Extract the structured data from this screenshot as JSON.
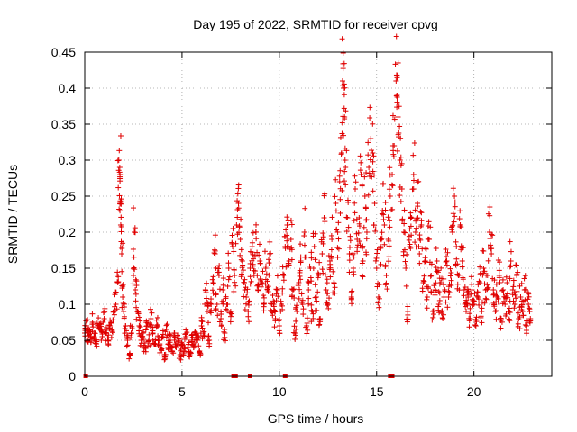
{
  "chart_data": {
    "type": "scatter",
    "title": "Day 195 of 2022, SRMTID for receiver cpvg",
    "xlabel": "GPS time / hours",
    "ylabel": "SRMTID / TECUs",
    "xlim": [
      0,
      24
    ],
    "ylim": [
      0,
      0.45
    ],
    "xticks": [
      0,
      5,
      10,
      15,
      20
    ],
    "xtick_labels": [
      "0",
      "5",
      "10",
      "15",
      "20"
    ],
    "yticks": [
      0,
      0.05,
      0.1,
      0.15,
      0.2,
      0.25,
      0.3,
      0.35,
      0.4,
      0.45
    ],
    "ytick_labels": [
      "0",
      "0.05",
      "0.1",
      "0.15",
      "0.2",
      "0.25",
      "0.3",
      "0.35",
      "0.4",
      "0.45"
    ],
    "grid": true,
    "marker": "+",
    "color": "#e00000",
    "series": [
      {
        "name": "SRMTID",
        "points": [
          [
            0.0,
            0.06
          ],
          [
            0.1,
            0.07
          ],
          [
            0.15,
            0.05
          ],
          [
            0.2,
            0.065
          ],
          [
            0.3,
            0.055
          ],
          [
            0.4,
            0.075
          ],
          [
            0.5,
            0.06
          ],
          [
            0.6,
            0.045
          ],
          [
            0.7,
            0.07
          ],
          [
            0.8,
            0.065
          ],
          [
            0.9,
            0.055
          ],
          [
            1.0,
            0.08
          ],
          [
            1.1,
            0.06
          ],
          [
            1.2,
            0.05
          ],
          [
            1.3,
            0.07
          ],
          [
            1.4,
            0.065
          ],
          [
            1.5,
            0.09
          ],
          [
            1.6,
            0.1
          ],
          [
            1.7,
            0.13
          ],
          [
            1.75,
            0.3
          ],
          [
            1.8,
            0.29
          ],
          [
            1.82,
            0.24
          ],
          [
            1.85,
            0.21
          ],
          [
            1.9,
            0.17
          ],
          [
            1.95,
            0.11
          ],
          [
            2.0,
            0.09
          ],
          [
            2.1,
            0.07
          ],
          [
            2.2,
            0.05
          ],
          [
            2.3,
            0.03
          ],
          [
            2.4,
            0.06
          ],
          [
            2.5,
            0.14
          ],
          [
            2.55,
            0.2
          ],
          [
            2.6,
            0.12
          ],
          [
            2.7,
            0.09
          ],
          [
            2.8,
            0.07
          ],
          [
            2.9,
            0.05
          ],
          [
            3.0,
            0.06
          ],
          [
            3.1,
            0.04
          ],
          [
            3.2,
            0.07
          ],
          [
            3.3,
            0.05
          ],
          [
            3.4,
            0.08
          ],
          [
            3.5,
            0.06
          ],
          [
            3.6,
            0.045
          ],
          [
            3.7,
            0.07
          ],
          [
            3.8,
            0.05
          ],
          [
            3.9,
            0.04
          ],
          [
            4.0,
            0.055
          ],
          [
            4.1,
            0.03
          ],
          [
            4.2,
            0.065
          ],
          [
            4.3,
            0.045
          ],
          [
            4.4,
            0.05
          ],
          [
            4.5,
            0.035
          ],
          [
            4.6,
            0.06
          ],
          [
            4.7,
            0.04
          ],
          [
            4.8,
            0.05
          ],
          [
            4.9,
            0.03
          ],
          [
            5.0,
            0.045
          ],
          [
            5.1,
            0.035
          ],
          [
            5.2,
            0.055
          ],
          [
            5.3,
            0.04
          ],
          [
            5.4,
            0.03
          ],
          [
            5.5,
            0.05
          ],
          [
            5.6,
            0.04
          ],
          [
            5.7,
            0.06
          ],
          [
            5.8,
            0.05
          ],
          [
            5.9,
            0.035
          ],
          [
            6.0,
            0.07
          ],
          [
            6.1,
            0.06
          ],
          [
            6.2,
            0.12
          ],
          [
            6.3,
            0.09
          ],
          [
            6.4,
            0.05
          ],
          [
            6.5,
            0.1
          ],
          [
            6.6,
            0.13
          ],
          [
            6.7,
            0.17
          ],
          [
            6.8,
            0.1
          ],
          [
            6.9,
            0.14
          ],
          [
            7.0,
            0.08
          ],
          [
            7.1,
            0.12
          ],
          [
            7.2,
            0.06
          ],
          [
            7.3,
            0.1
          ],
          [
            7.4,
            0.15
          ],
          [
            7.5,
            0.09
          ],
          [
            7.6,
            0.18
          ],
          [
            7.7,
            0.14
          ],
          [
            7.8,
            0.21
          ],
          [
            7.9,
            0.24
          ],
          [
            8.0,
            0.19
          ],
          [
            8.1,
            0.16
          ],
          [
            8.2,
            0.13
          ],
          [
            8.3,
            0.11
          ],
          [
            8.4,
            0.09
          ],
          [
            8.5,
            0.15
          ],
          [
            8.6,
            0.18
          ],
          [
            8.7,
            0.14
          ],
          [
            8.8,
            0.2
          ],
          [
            8.9,
            0.12
          ],
          [
            9.0,
            0.16
          ],
          [
            9.1,
            0.13
          ],
          [
            9.2,
            0.1
          ],
          [
            9.3,
            0.15
          ],
          [
            9.4,
            0.12
          ],
          [
            9.5,
            0.17
          ],
          [
            9.6,
            0.09
          ],
          [
            9.7,
            0.1
          ],
          [
            9.8,
            0.08
          ],
          [
            9.9,
            0.12
          ],
          [
            10.0,
            0.07
          ],
          [
            10.1,
            0.1
          ],
          [
            10.2,
            0.14
          ],
          [
            10.3,
            0.18
          ],
          [
            10.4,
            0.21
          ],
          [
            10.5,
            0.16
          ],
          [
            10.6,
            0.19
          ],
          [
            10.7,
            0.12
          ],
          [
            10.8,
            0.06
          ],
          [
            10.9,
            0.09
          ],
          [
            11.0,
            0.13
          ],
          [
            11.1,
            0.16
          ],
          [
            11.2,
            0.1
          ],
          [
            11.3,
            0.2
          ],
          [
            11.4,
            0.07
          ],
          [
            11.5,
            0.12
          ],
          [
            11.6,
            0.15
          ],
          [
            11.7,
            0.09
          ],
          [
            11.8,
            0.18
          ],
          [
            11.9,
            0.11
          ],
          [
            12.0,
            0.14
          ],
          [
            12.1,
            0.08
          ],
          [
            12.2,
            0.17
          ],
          [
            12.3,
            0.22
          ],
          [
            12.4,
            0.12
          ],
          [
            12.5,
            0.1
          ],
          [
            12.6,
            0.16
          ],
          [
            12.7,
            0.19
          ],
          [
            12.8,
            0.13
          ],
          [
            12.9,
            0.24
          ],
          [
            13.0,
            0.2
          ],
          [
            13.1,
            0.27
          ],
          [
            13.2,
            0.31
          ],
          [
            13.25,
            0.41
          ],
          [
            13.3,
            0.4
          ],
          [
            13.35,
            0.36
          ],
          [
            13.4,
            0.29
          ],
          [
            13.5,
            0.22
          ],
          [
            13.6,
            0.17
          ],
          [
            13.7,
            0.11
          ],
          [
            13.8,
            0.15
          ],
          [
            13.9,
            0.26
          ],
          [
            14.0,
            0.19
          ],
          [
            14.1,
            0.22
          ],
          [
            14.2,
            0.28
          ],
          [
            14.3,
            0.16
          ],
          [
            14.4,
            0.25
          ],
          [
            14.5,
            0.2
          ],
          [
            14.6,
            0.29
          ],
          [
            14.7,
            0.33
          ],
          [
            14.8,
            0.31
          ],
          [
            14.9,
            0.24
          ],
          [
            15.0,
            0.15
          ],
          [
            15.1,
            0.11
          ],
          [
            15.2,
            0.18
          ],
          [
            15.3,
            0.23
          ],
          [
            15.4,
            0.21
          ],
          [
            15.5,
            0.14
          ],
          [
            15.6,
            0.19
          ],
          [
            15.7,
            0.25
          ],
          [
            15.8,
            0.28
          ],
          [
            15.9,
            0.32
          ],
          [
            16.0,
            0.41
          ],
          [
            16.05,
            0.39
          ],
          [
            16.1,
            0.36
          ],
          [
            16.2,
            0.3
          ],
          [
            16.3,
            0.26
          ],
          [
            16.4,
            0.2
          ],
          [
            16.5,
            0.15
          ],
          [
            16.6,
            0.09
          ],
          [
            16.7,
            0.18
          ],
          [
            16.8,
            0.22
          ],
          [
            16.9,
            0.28
          ],
          [
            17.0,
            0.2
          ],
          [
            17.1,
            0.24
          ],
          [
            17.2,
            0.17
          ],
          [
            17.3,
            0.21
          ],
          [
            17.4,
            0.13
          ],
          [
            17.5,
            0.16
          ],
          [
            17.6,
            0.11
          ],
          [
            17.7,
            0.19
          ],
          [
            17.8,
            0.14
          ],
          [
            17.9,
            0.09
          ],
          [
            18.0,
            0.12
          ],
          [
            18.1,
            0.16
          ],
          [
            18.2,
            0.1
          ],
          [
            18.3,
            0.13
          ],
          [
            18.4,
            0.08
          ],
          [
            18.5,
            0.12
          ],
          [
            18.6,
            0.16
          ],
          [
            18.7,
            0.11
          ],
          [
            18.8,
            0.14
          ],
          [
            18.9,
            0.2
          ],
          [
            19.0,
            0.25
          ],
          [
            19.1,
            0.18
          ],
          [
            19.2,
            0.14
          ],
          [
            19.3,
            0.21
          ],
          [
            19.4,
            0.16
          ],
          [
            19.5,
            0.12
          ],
          [
            19.6,
            0.09
          ],
          [
            19.7,
            0.11
          ],
          [
            19.8,
            0.08
          ],
          [
            19.9,
            0.12
          ],
          [
            20.0,
            0.1
          ],
          [
            20.1,
            0.07
          ],
          [
            20.2,
            0.11
          ],
          [
            20.3,
            0.13
          ],
          [
            20.4,
            0.09
          ],
          [
            20.5,
            0.15
          ],
          [
            20.6,
            0.12
          ],
          [
            20.7,
            0.14
          ],
          [
            20.8,
            0.2
          ],
          [
            20.9,
            0.17
          ],
          [
            21.0,
            0.12
          ],
          [
            21.1,
            0.09
          ],
          [
            21.2,
            0.11
          ],
          [
            21.3,
            0.14
          ],
          [
            21.4,
            0.08
          ],
          [
            21.5,
            0.12
          ],
          [
            21.6,
            0.1
          ],
          [
            21.7,
            0.13
          ],
          [
            21.8,
            0.09
          ],
          [
            21.9,
            0.16
          ],
          [
            22.0,
            0.12
          ],
          [
            22.1,
            0.1
          ],
          [
            22.2,
            0.14
          ],
          [
            22.3,
            0.08
          ],
          [
            22.4,
            0.11
          ],
          [
            22.5,
            0.09
          ],
          [
            22.6,
            0.12
          ],
          [
            22.7,
            0.07
          ],
          [
            22.8,
            0.1
          ],
          [
            22.9,
            0.08
          ]
        ]
      }
    ],
    "gap_markers_x": [
      0.05,
      7.65,
      7.75,
      8.5,
      10.3,
      15.7,
      15.8
    ]
  }
}
